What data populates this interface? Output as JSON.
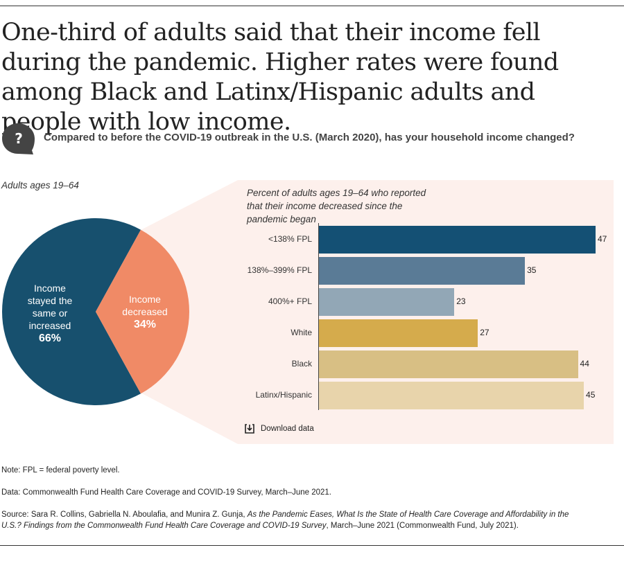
{
  "headline": "One-third of adults said that their income fell during the pandemic. Higher rates were found among Black and Latinx/Hispanic adults and people with low income.",
  "question": "Compared to before the COVID-19 outbreak in the U.S. (March 2020), has your household income changed?",
  "question_icon_label": "?",
  "pie": {
    "label": "Adults ages 19–64",
    "slices": [
      {
        "name": "Income stayed the same or increased",
        "lines": [
          "Income",
          "stayed the",
          "same or",
          "increased"
        ],
        "value_label": "66%",
        "value": 66,
        "color": "#17506e"
      },
      {
        "name": "Income decreased",
        "lines": [
          "Income",
          "decreased"
        ],
        "value_label": "34%",
        "value": 34,
        "color": "#f08a66"
      }
    ]
  },
  "chart_data": [
    {
      "type": "pie",
      "title": "Adults ages 19–64",
      "categories": [
        "Income stayed the same or increased",
        "Income decreased"
      ],
      "values": [
        66,
        34
      ],
      "unit": "%"
    },
    {
      "type": "bar",
      "orientation": "horizontal",
      "title": "Percent of adults ages 19–64 who reported that their income decreased since the pandemic began",
      "title_lines": [
        "Percent of adults ages 19–64 who reported",
        "that their income decreased since the",
        "pandemic began"
      ],
      "categories": [
        "<138% FPL",
        "138%–399% FPL",
        "400%+ FPL",
        "White",
        "Black",
        "Latinx/Hispanic"
      ],
      "values": [
        47,
        35,
        23,
        27,
        44,
        45
      ],
      "colors": [
        "#145074",
        "#5a7b96",
        "#92a7b6",
        "#d5ab4c",
        "#d8bf84",
        "#e8d4ab"
      ],
      "xlim": [
        0,
        50
      ],
      "xlabel": "",
      "ylabel": "",
      "grid": false
    }
  ],
  "download_label": "Download data",
  "notes": {
    "note": "Note: FPL = federal poverty level.",
    "data": "Data: Commonwealth Fund Health Care Coverage and COVID-19 Survey, March–June 2021.",
    "source_prefix": "Source: Sara R. Collins, Gabriella N. Aboulafia, and Munira Z. Gunja, ",
    "source_title": "As the Pandemic Eases, What Is the State of Health Care Coverage and Affordability in the U.S.? Findings from the Commonwealth Fund Health Care Coverage and COVID-19 Survey",
    "source_suffix": ", March–June 2021 (Commonwealth Fund, July 2021)."
  },
  "colors": {
    "panel_bg": "#fdf0ec",
    "accent_dark": "#17506e",
    "accent_orange": "#f08a66",
    "icon_bg": "#444444"
  }
}
